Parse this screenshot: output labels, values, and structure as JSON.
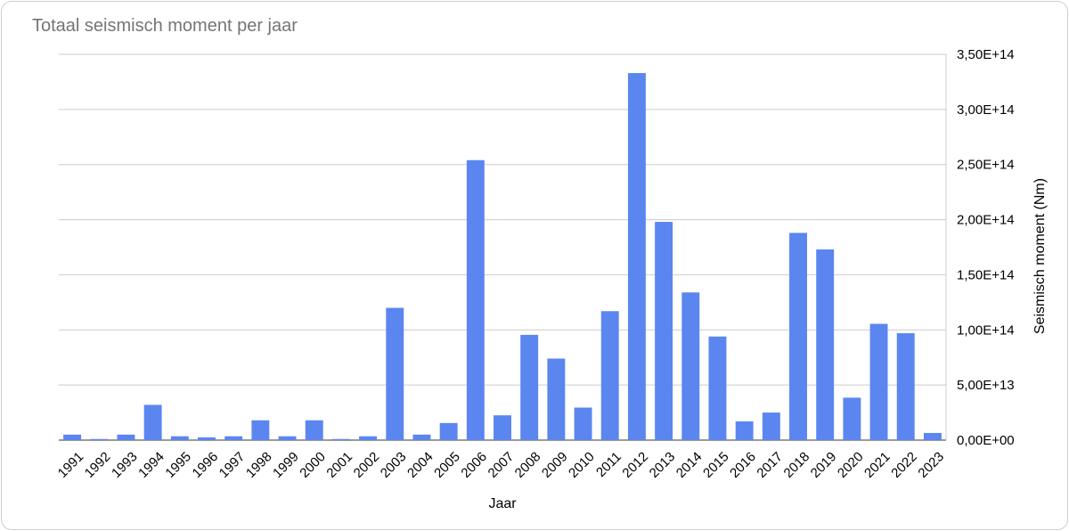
{
  "chart_data": {
    "type": "bar",
    "title": "Totaal seismisch moment per jaar",
    "xlabel": "Jaar",
    "ylabel": "Seismisch moment (Nm)",
    "ylim": [
      0,
      350000000000000
    ],
    "y_axis_side": "right",
    "grid": true,
    "legend": "none",
    "bar_color": "#5b86f0",
    "categories": [
      "1991",
      "1992",
      "1993",
      "1994",
      "1995",
      "1996",
      "1997",
      "1998",
      "1999",
      "2000",
      "2001",
      "2002",
      "2003",
      "2004",
      "2005",
      "2006",
      "2007",
      "2008",
      "2009",
      "2010",
      "2011",
      "2012",
      "2013",
      "2014",
      "2015",
      "2016",
      "2017",
      "2018",
      "2019",
      "2020",
      "2021",
      "2022",
      "2023"
    ],
    "values": [
      5000000000000,
      1000000000000,
      5000000000000,
      32000000000000,
      3500000000000,
      2500000000000,
      3500000000000,
      18000000000000,
      3500000000000,
      18000000000000,
      1000000000000,
      3500000000000,
      120000000000000,
      5000000000000,
      15500000000000,
      254000000000000,
      22500000000000,
      95500000000000,
      74000000000000,
      29500000000000,
      117000000000000,
      333000000000000,
      198000000000000,
      134000000000000,
      94000000000000,
      17000000000000,
      25000000000000,
      188000000000000,
      173000000000000,
      38500000000000,
      105500000000000,
      97000000000000,
      6500000000000
    ],
    "yticks": [
      {
        "value": 0,
        "label": "0,00E+00"
      },
      {
        "value": 50000000000000,
        "label": "5,00E+13"
      },
      {
        "value": 100000000000000,
        "label": "1,00E+14"
      },
      {
        "value": 150000000000000,
        "label": "1,50E+14"
      },
      {
        "value": 200000000000000,
        "label": "2,00E+14"
      },
      {
        "value": 250000000000000,
        "label": "2,50E+14"
      },
      {
        "value": 300000000000000,
        "label": "3,00E+14"
      },
      {
        "value": 350000000000000,
        "label": "3,50E+14"
      }
    ]
  }
}
